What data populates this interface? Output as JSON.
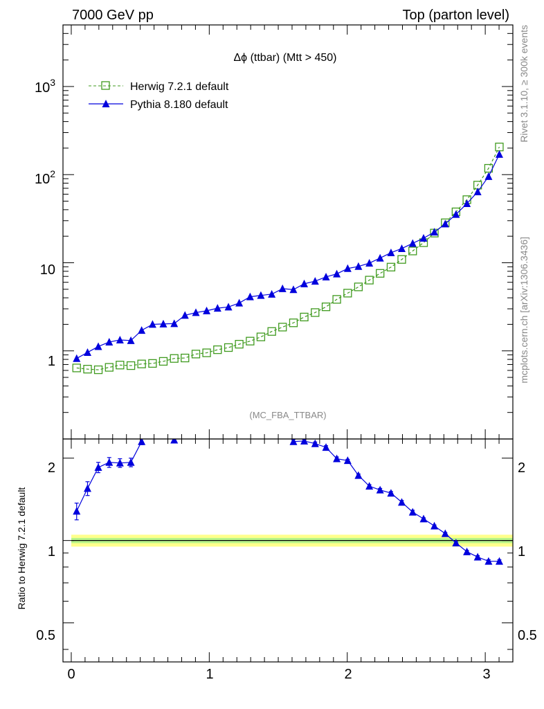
{
  "header": {
    "left": "7000 GeV pp",
    "right": "Top (parton level)"
  },
  "side_labels": {
    "rivet": "Rivet 3.1.10, ≥ 300k events",
    "mcplots": "mcplots.cern.ch [arXiv:1306.3436]"
  },
  "watermark": "(MC_FBA_TTBAR)",
  "chart_data": [
    {
      "type": "line",
      "title": "Δϕ (ttbar) (Mtt > 450)",
      "xlabel": "",
      "ylabel": "",
      "yscale": "log",
      "xlim": [
        -0.06,
        3.2
      ],
      "ylim": [
        0.1,
        5000
      ],
      "y_tick_labels": [
        "1",
        "10",
        "10^2",
        "10^3"
      ],
      "x": [
        0.039,
        0.118,
        0.196,
        0.275,
        0.353,
        0.432,
        0.51,
        0.589,
        0.667,
        0.746,
        0.824,
        0.903,
        0.981,
        1.06,
        1.139,
        1.217,
        1.296,
        1.374,
        1.453,
        1.531,
        1.61,
        1.688,
        1.767,
        1.846,
        1.924,
        2.003,
        2.081,
        2.16,
        2.238,
        2.317,
        2.395,
        2.474,
        2.553,
        2.631,
        2.71,
        2.788,
        2.867,
        2.945,
        3.024,
        3.102
      ],
      "series": [
        {
          "name": "Herwig 7.2.1 default",
          "color": "#3f9a1e",
          "marker": "open-square",
          "linestyle": "dashed",
          "values": [
            0.64,
            0.62,
            0.61,
            0.65,
            0.69,
            0.68,
            0.71,
            0.72,
            0.76,
            0.82,
            0.83,
            0.92,
            0.95,
            1.03,
            1.09,
            1.19,
            1.29,
            1.44,
            1.66,
            1.86,
            2.08,
            2.42,
            2.72,
            3.16,
            3.84,
            4.52,
            5.32,
            6.35,
            7.58,
            8.92,
            10.9,
            13.6,
            16.9,
            21.7,
            28.4,
            37.8,
            52.0,
            76.0,
            118.0,
            206.0
          ]
        },
        {
          "name": "Pythia 8.180 default",
          "color": "#0000dd",
          "marker": "filled-triangle",
          "linestyle": "solid",
          "values": [
            0.82,
            0.96,
            1.12,
            1.26,
            1.33,
            1.31,
            1.71,
            2.0,
            2.02,
            2.04,
            2.53,
            2.72,
            2.85,
            3.05,
            3.15,
            3.49,
            4.11,
            4.26,
            4.4,
            5.08,
            4.96,
            5.77,
            6.18,
            6.9,
            7.47,
            8.6,
            9.08,
            9.9,
            11.3,
            13.0,
            14.5,
            16.6,
            19.0,
            22.3,
            27.6,
            35.4,
            46.9,
            63.8,
            95.3,
            170.0
          ]
        }
      ]
    },
    {
      "type": "line",
      "title": "",
      "xlabel": "",
      "ylabel": "Ratio to Herwig 7.2.1 default",
      "yscale": "log",
      "xlim": [
        -0.06,
        3.2
      ],
      "ylim": [
        0.36,
        2.35
      ],
      "x_tick_labels": [
        "0",
        "1",
        "2",
        "3"
      ],
      "y_tick_labels": [
        "0.5",
        "1",
        "2"
      ],
      "reference_band": {
        "low": 0.95,
        "high": 1.05,
        "color": "#ffff66"
      },
      "x": [
        0.039,
        0.118,
        0.196,
        0.275,
        0.353,
        0.432,
        0.51,
        0.746,
        1.61,
        1.688,
        1.767,
        1.846,
        1.924,
        2.003,
        2.081,
        2.16,
        2.238,
        2.317,
        2.395,
        2.474,
        2.553,
        2.631,
        2.71,
        2.788,
        2.867,
        2.945,
        3.024,
        3.102
      ],
      "series": [
        {
          "name": "Pythia 8.180 default",
          "color": "#0000dd",
          "values": [
            1.28,
            1.55,
            1.85,
            1.93,
            1.92,
            1.93,
            2.3,
            2.33,
            2.3,
            2.31,
            2.26,
            2.19,
            1.99,
            1.96,
            1.73,
            1.58,
            1.53,
            1.49,
            1.38,
            1.27,
            1.2,
            1.13,
            1.06,
            0.98,
            0.91,
            0.87,
            0.84,
            0.84
          ],
          "errors": [
            0.09,
            0.09,
            0.08,
            0.08,
            0.07,
            0.07,
            0.06,
            0.05,
            0.04,
            0.03,
            0.03,
            0.03,
            0.03,
            0.02,
            0.02,
            0.02,
            0.02,
            0.02,
            0.02,
            0.02,
            0.01,
            0.01,
            0.01,
            0.01,
            0.01,
            0.01,
            0.01,
            0.01
          ]
        }
      ]
    }
  ]
}
